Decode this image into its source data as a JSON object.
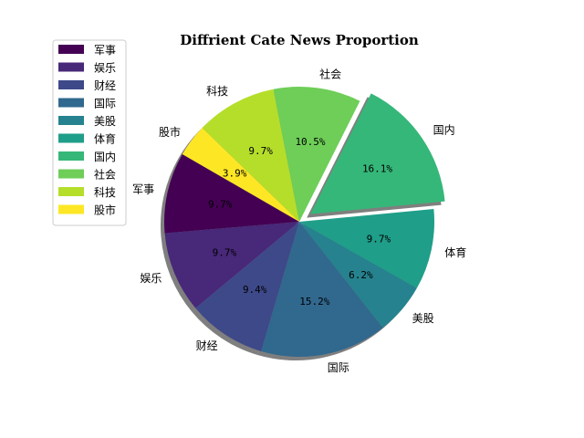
{
  "chart_data": {
    "type": "pie",
    "title": "Diffrient Cate News Proportion",
    "categories": [
      "军事",
      "娱乐",
      "财经",
      "国际",
      "美股",
      "体育",
      "国内",
      "社会",
      "科技",
      "股市"
    ],
    "values": [
      9.7,
      9.7,
      9.4,
      15.2,
      6.2,
      9.7,
      16.1,
      10.5,
      9.7,
      3.9
    ],
    "labels": [
      "9.7%",
      "9.7%",
      "9.4%",
      "15.2%",
      "6.2%",
      "9.7%",
      "16.1%",
      "10.5%",
      "9.7%",
      "3.9%"
    ],
    "colors": [
      "#440154",
      "#482878",
      "#3e4989",
      "#31688e",
      "#26828e",
      "#1f9e89",
      "#35b779",
      "#6ece58",
      "#b5de2b",
      "#fde725"
    ],
    "explode": [
      0,
      0,
      0,
      0,
      0,
      0,
      0.1,
      0,
      0,
      0
    ],
    "start_angle_deg": 150,
    "shadow": true,
    "legend_position": "top-left"
  }
}
